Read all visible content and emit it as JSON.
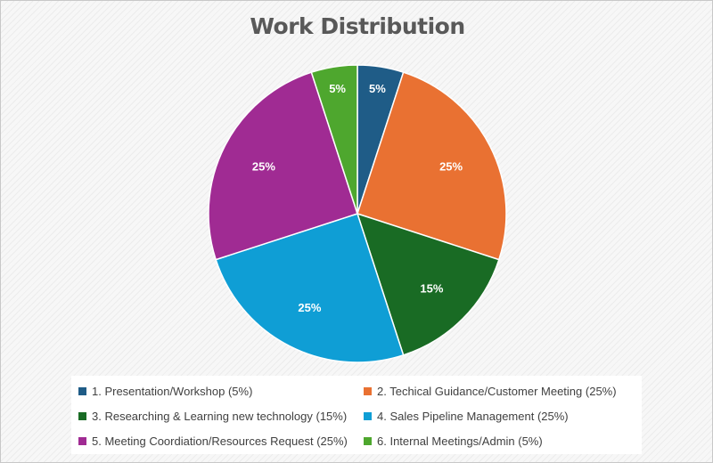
{
  "chart_data": {
    "type": "pie",
    "title": "Work Distribution",
    "start_angle_deg": 0,
    "direction": "clockwise",
    "legend_position": "bottom",
    "slices": [
      {
        "label": "1. Presentation/Workshop (5%)",
        "value": 5,
        "data_label": "5%",
        "color": "#1f5c87"
      },
      {
        "label": "2. Techical Guidance/Customer Meeting (25%)",
        "value": 25,
        "data_label": "25%",
        "color": "#e97132"
      },
      {
        "label": "3. Researching & Learning new technology (15%)",
        "value": 15,
        "data_label": "15%",
        "color": "#196b24"
      },
      {
        "label": "4. Sales Pipeline Management (25%)",
        "value": 25,
        "data_label": "25%",
        "color": "#0f9ed5"
      },
      {
        "label": "5. Meeting Coordiation/Resources Request (25%)",
        "value": 25,
        "data_label": "25%",
        "color": "#a02b93"
      },
      {
        "label": "6. Internal Meetings/Admin (5%)",
        "value": 5,
        "data_label": "5%",
        "color": "#4ea72e"
      }
    ]
  }
}
